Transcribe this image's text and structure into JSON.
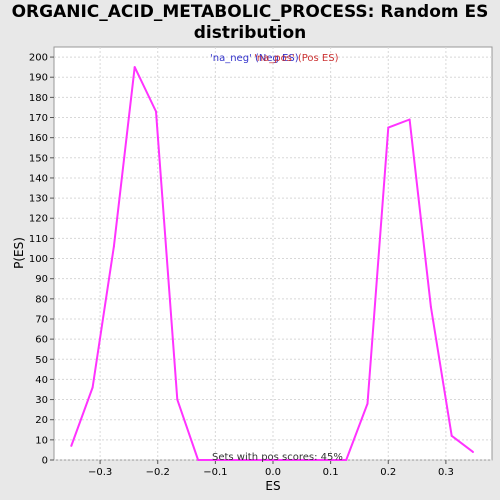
{
  "chart_data": {
    "type": "line",
    "title_lines": [
      "ORGANIC_ACID_METABOLIC_PROCESS: Random ES",
      "distribution"
    ],
    "xlabel": "ES",
    "ylabel": "P(ES)",
    "xlim": [
      -0.38,
      0.38
    ],
    "ylim": [
      0,
      205
    ],
    "xticks": [
      -0.3,
      -0.2,
      -0.1,
      0.0,
      0.1,
      0.2,
      0.3
    ],
    "xtick_labels": [
      "−0.3",
      "−0.2",
      "−0.1",
      "0.0",
      "0.1",
      "0.2",
      "0.3"
    ],
    "yticks": [
      0,
      10,
      20,
      30,
      40,
      50,
      60,
      70,
      80,
      90,
      100,
      110,
      120,
      130,
      140,
      150,
      160,
      170,
      180,
      190,
      200
    ],
    "grid": true,
    "legend": [
      {
        "label": "'na_neg' (Neg ES)",
        "color": "#3333cc"
      },
      {
        "label": "'na_pos' (Pos ES)",
        "color": "#cc3333"
      }
    ],
    "annotation": "Sets with pos scores: 45%",
    "series": [
      {
        "color": "#ff33ff",
        "x": [
          -0.35,
          -0.313,
          -0.276,
          -0.24,
          -0.203,
          -0.166,
          -0.13,
          -0.093,
          -0.056,
          -0.02,
          0.017,
          0.054,
          0.09,
          0.127,
          0.164,
          0.2,
          0.237,
          0.274,
          0.31,
          0.347
        ],
        "y": [
          7,
          36,
          106,
          195,
          173,
          30,
          0,
          0,
          0,
          0,
          0,
          0,
          0,
          0,
          28,
          165,
          169,
          76,
          12,
          4
        ]
      }
    ]
  }
}
